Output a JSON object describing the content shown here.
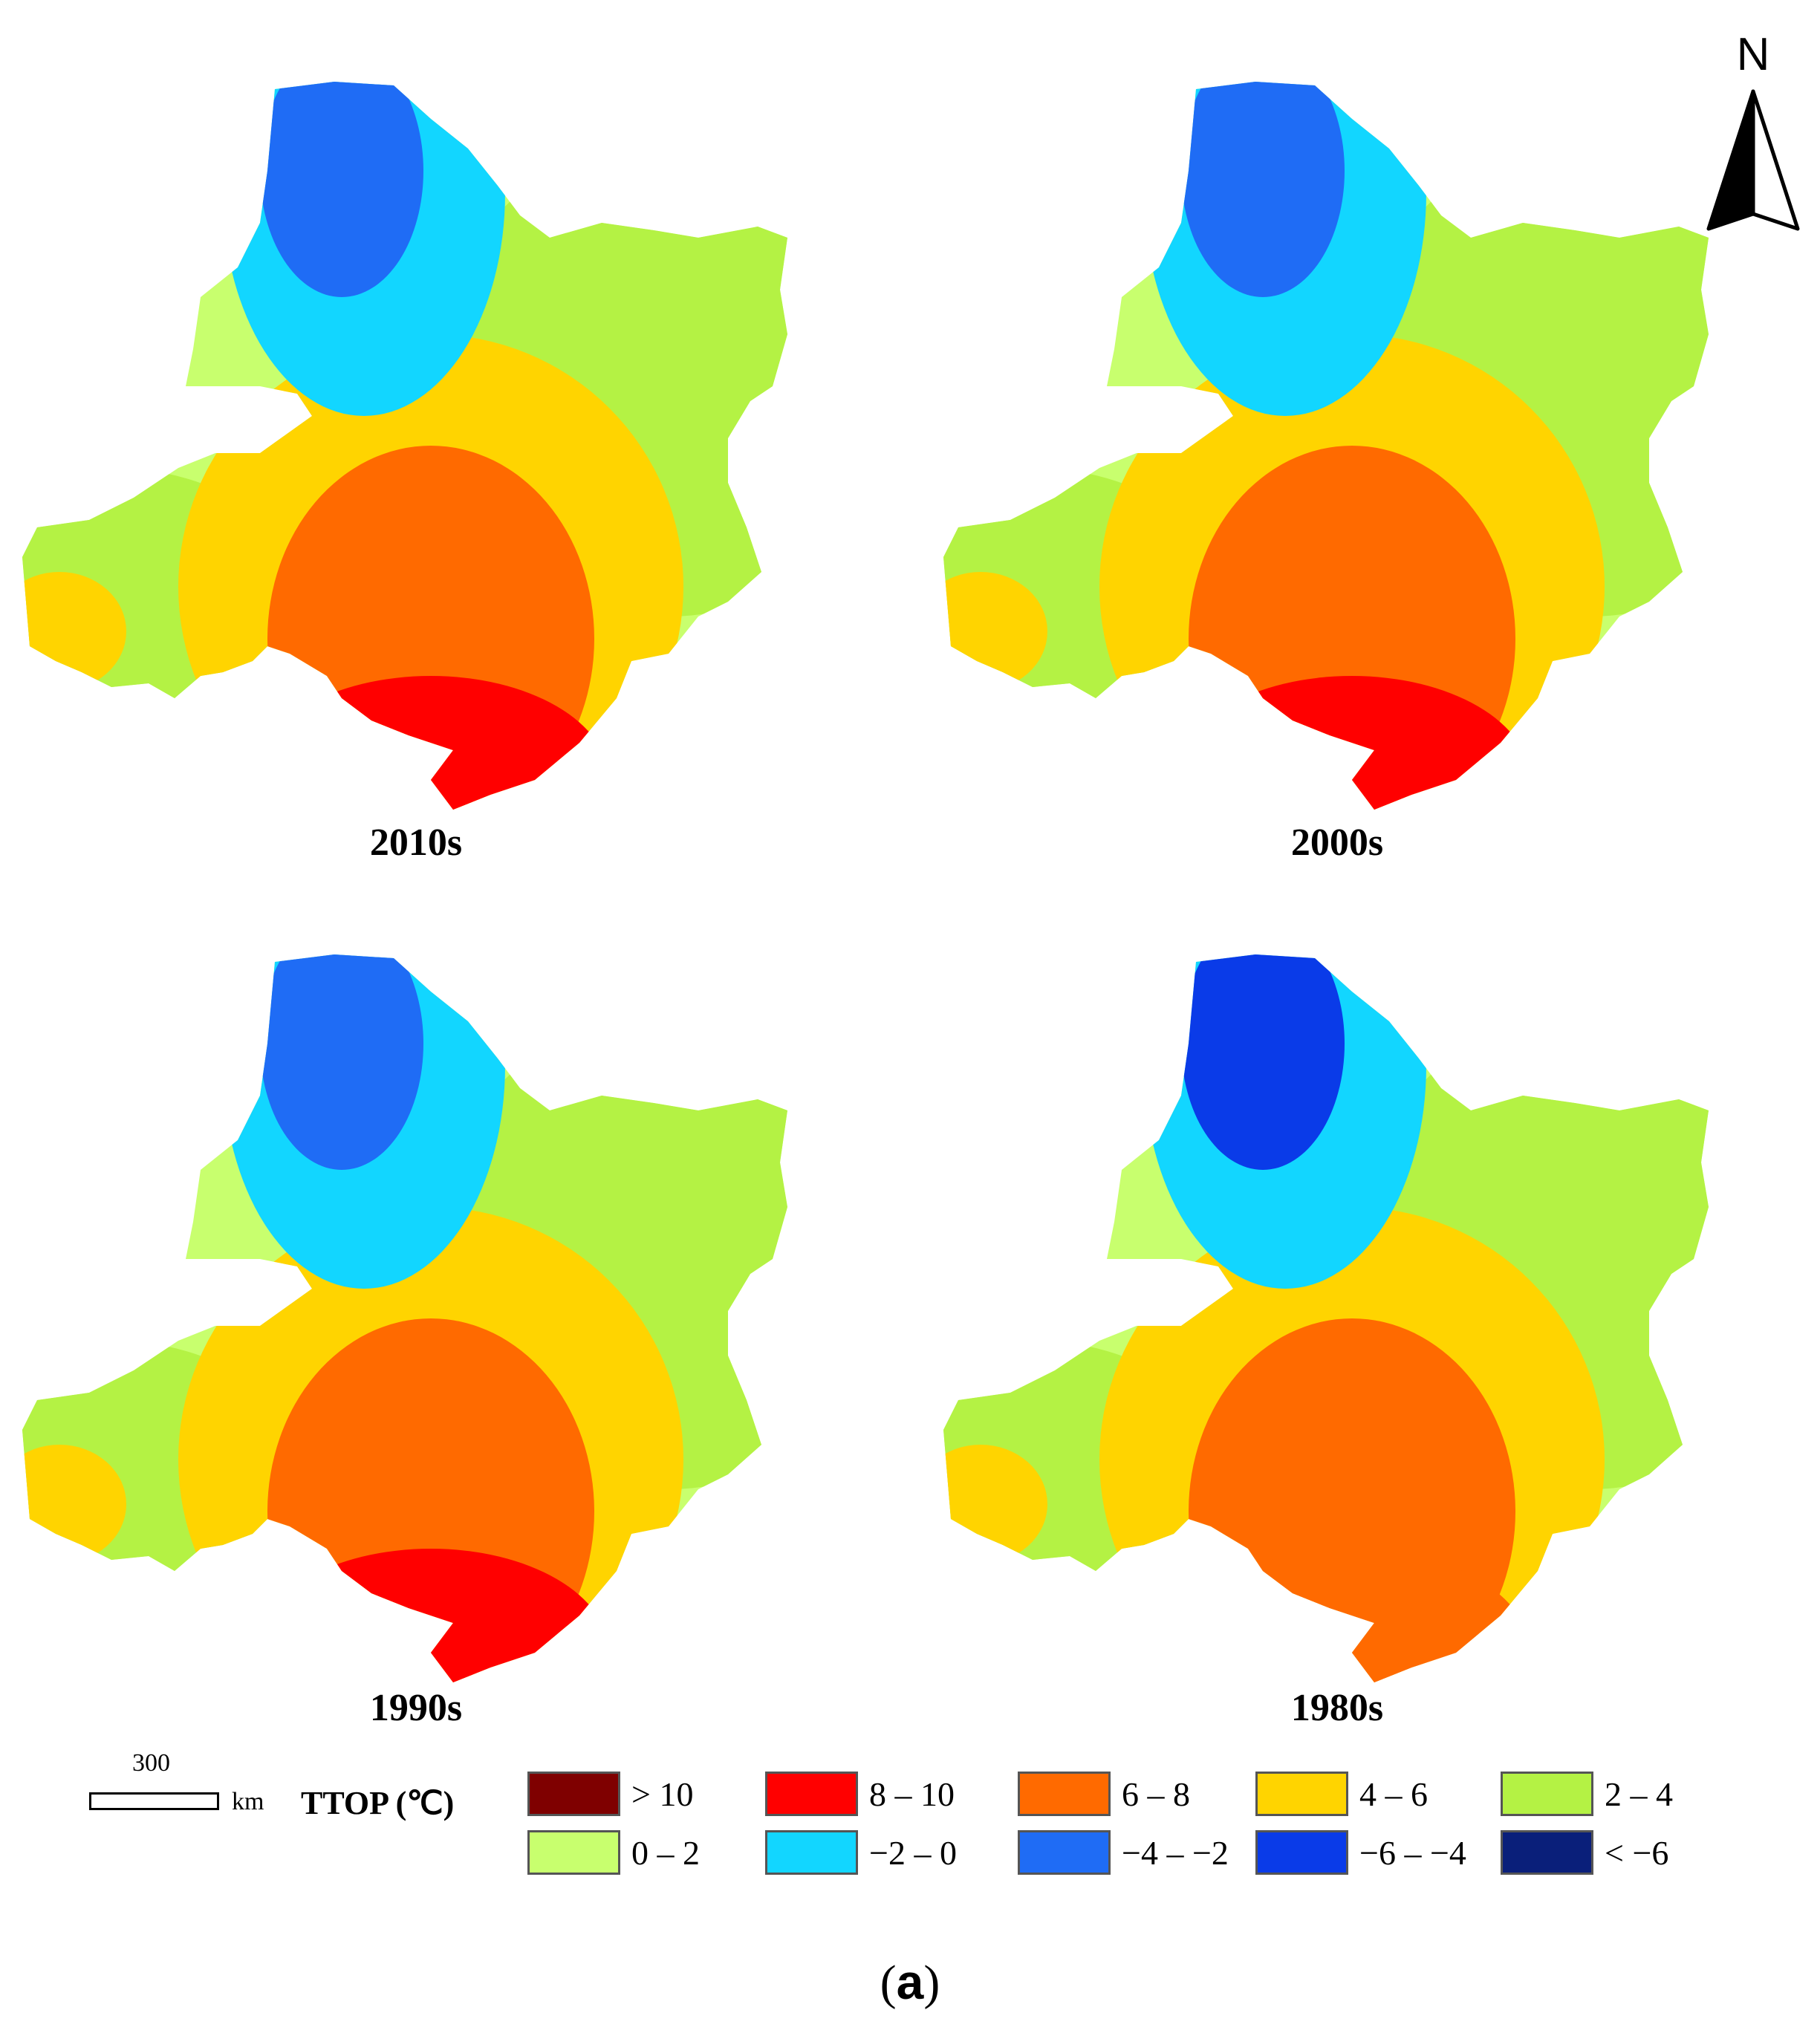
{
  "north_arrow": {
    "label": "N",
    "icon": "north-arrow-icon"
  },
  "panels": [
    {
      "id": "2010s",
      "label": "2010s",
      "zones": [
        "#ff0000",
        "#ff6a00",
        "#ffd400",
        "#c8ff6e",
        "#b4f244",
        "#12d6ff",
        "#1f6cf5"
      ]
    },
    {
      "id": "2000s",
      "label": "2000s",
      "zones": [
        "#ff0000",
        "#ff6a00",
        "#ffd400",
        "#c8ff6e",
        "#b4f244",
        "#12d6ff",
        "#1f6cf5"
      ]
    },
    {
      "id": "1990s",
      "label": "1990s",
      "zones": [
        "#ff0000",
        "#ff6a00",
        "#ffd400",
        "#c8ff6e",
        "#b4f244",
        "#12d6ff",
        "#1f6cf5"
      ]
    },
    {
      "id": "1980s",
      "label": "1980s",
      "zones": [
        "#ff6a00",
        "#ff6a00",
        "#ffd400",
        "#c8ff6e",
        "#b4f244",
        "#12d6ff",
        "#0a3be8"
      ]
    }
  ],
  "scale_bar": {
    "value": "300",
    "unit": "km"
  },
  "legend": {
    "title": "TTOP (℃)",
    "items": [
      {
        "label": "> 10",
        "color": "#7f0000"
      },
      {
        "label": "8 – 10",
        "color": "#ff0000"
      },
      {
        "label": "6 – 8",
        "color": "#ff6a00"
      },
      {
        "label": "4 – 6",
        "color": "#ffd400"
      },
      {
        "label": "2 – 4",
        "color": "#b4f244"
      },
      {
        "label": "0 – 2",
        "color": "#c8ff6e"
      },
      {
        "label": "−2 – 0",
        "color": "#12d6ff"
      },
      {
        "label": "−4 – −2",
        "color": "#1f6cf5"
      },
      {
        "label": "−6 – −4",
        "color": "#0a3be8"
      },
      {
        "label": "< −6",
        "color": "#0a1f7a"
      }
    ]
  },
  "figure_caption": "(a)"
}
